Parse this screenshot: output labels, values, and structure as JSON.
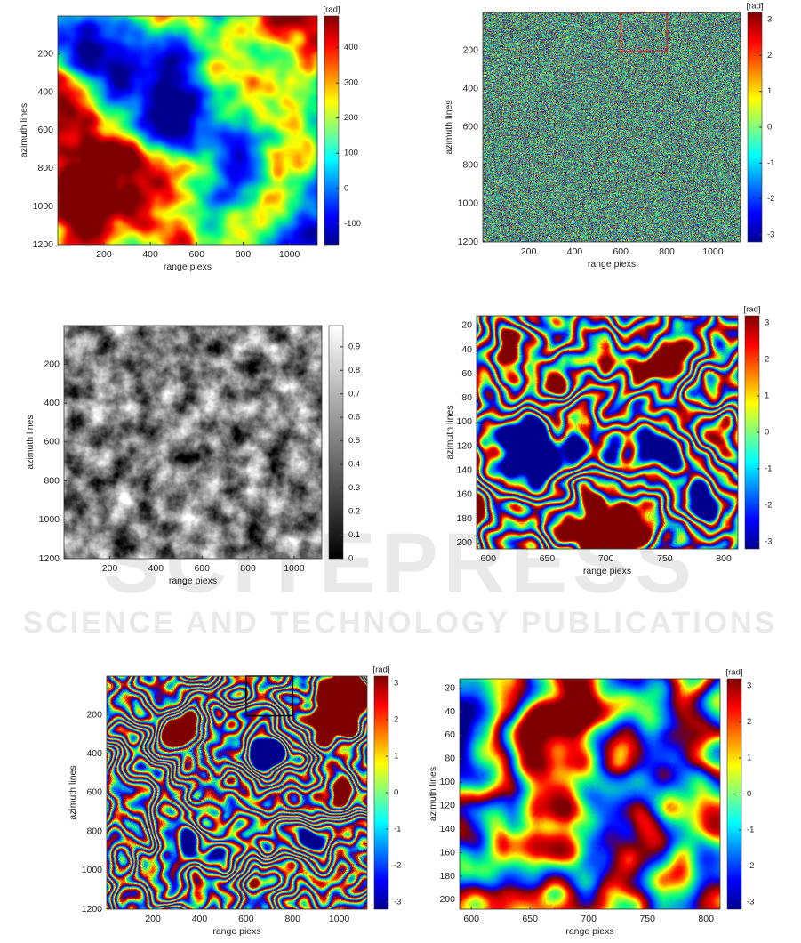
{
  "watermark": {
    "logo": "SCITEPRESS",
    "tagline": "SCIENCE AND TECHNOLOGY PUBLICATIONS"
  },
  "chart_data": [
    {
      "type": "image",
      "colormap": "jet",
      "xlabel": "range piexs",
      "ylabel": "azimuth lines",
      "xlim": [
        1,
        1120
      ],
      "ylim": [
        1200,
        1
      ],
      "xticks": [
        200,
        400,
        600,
        800,
        1000
      ],
      "yticks": [
        200,
        400,
        600,
        800,
        1000,
        1200
      ],
      "clim": [
        -160,
        490
      ],
      "cticks": [
        -100,
        0,
        100,
        200,
        300,
        400
      ],
      "clabel": "[rad]"
    },
    {
      "type": "image",
      "colormap": "jet",
      "xlabel": "range piexs",
      "ylabel": "azimuth lines",
      "xlim": [
        1,
        1120
      ],
      "ylim": [
        1200,
        1
      ],
      "xticks": [
        200,
        400,
        600,
        800,
        1000
      ],
      "yticks": [
        200,
        400,
        600,
        800,
        1000,
        1200
      ],
      "clim": [
        -3.2,
        3.2
      ],
      "cticks": [
        -3,
        -2,
        -1,
        0,
        1,
        2,
        3
      ],
      "clabel": "[rad]",
      "zoom_box": {
        "x": [
          600,
          800
        ],
        "y": [
          1,
          205
        ],
        "color": "#e02020"
      }
    },
    {
      "type": "image",
      "colormap": "gray",
      "xlabel": "range piexs",
      "ylabel": "azimuth lines",
      "xlim": [
        1,
        1120
      ],
      "ylim": [
        1200,
        1
      ],
      "xticks": [
        200,
        400,
        600,
        800,
        1000
      ],
      "yticks": [
        200,
        400,
        600,
        800,
        1000,
        1200
      ],
      "clim": [
        0,
        0.99
      ],
      "cticks": [
        0,
        0.1,
        0.2,
        0.3,
        0.4,
        0.5,
        0.6,
        0.7,
        0.8,
        0.9
      ]
    },
    {
      "type": "image",
      "colormap": "jet",
      "xlabel": "range piexs",
      "ylabel": "azimuth lines",
      "xlim": [
        590,
        812
      ],
      "ylim": [
        205,
        12
      ],
      "xticks": [
        600,
        650,
        700,
        750,
        800
      ],
      "yticks": [
        20,
        40,
        60,
        80,
        100,
        120,
        140,
        160,
        180,
        200
      ],
      "clim": [
        -3.2,
        3.2
      ],
      "cticks": [
        -3,
        -2,
        -1,
        0,
        1,
        2,
        3
      ],
      "clabel": "[rad]"
    },
    {
      "type": "image",
      "colormap": "jet",
      "xlabel": "range piexs",
      "ylabel": "azimuth lines",
      "xlim": [
        1,
        1120
      ],
      "ylim": [
        1200,
        1
      ],
      "xticks": [
        200,
        400,
        600,
        800,
        1000
      ],
      "yticks": [
        200,
        400,
        600,
        800,
        1000,
        1200
      ],
      "clim": [
        -3.2,
        3.2
      ],
      "cticks": [
        -3,
        -2,
        -1,
        0,
        1,
        2,
        3
      ],
      "clabel": "[rad]",
      "zoom_box": {
        "x": [
          600,
          800
        ],
        "y": [
          1,
          205
        ],
        "color": "#000000"
      }
    },
    {
      "type": "image",
      "colormap": "jet",
      "xlabel": "range piexs",
      "ylabel": "azimuth lines",
      "xlim": [
        590,
        812
      ],
      "ylim": [
        208,
        12
      ],
      "xticks": [
        600,
        650,
        700,
        750,
        800
      ],
      "yticks": [
        20,
        40,
        60,
        80,
        100,
        120,
        140,
        160,
        180,
        200
      ],
      "clim": [
        -3.2,
        3.2
      ],
      "cticks": [
        -3,
        -2,
        -1,
        0,
        1,
        2,
        3
      ],
      "clabel": "[rad]"
    }
  ]
}
